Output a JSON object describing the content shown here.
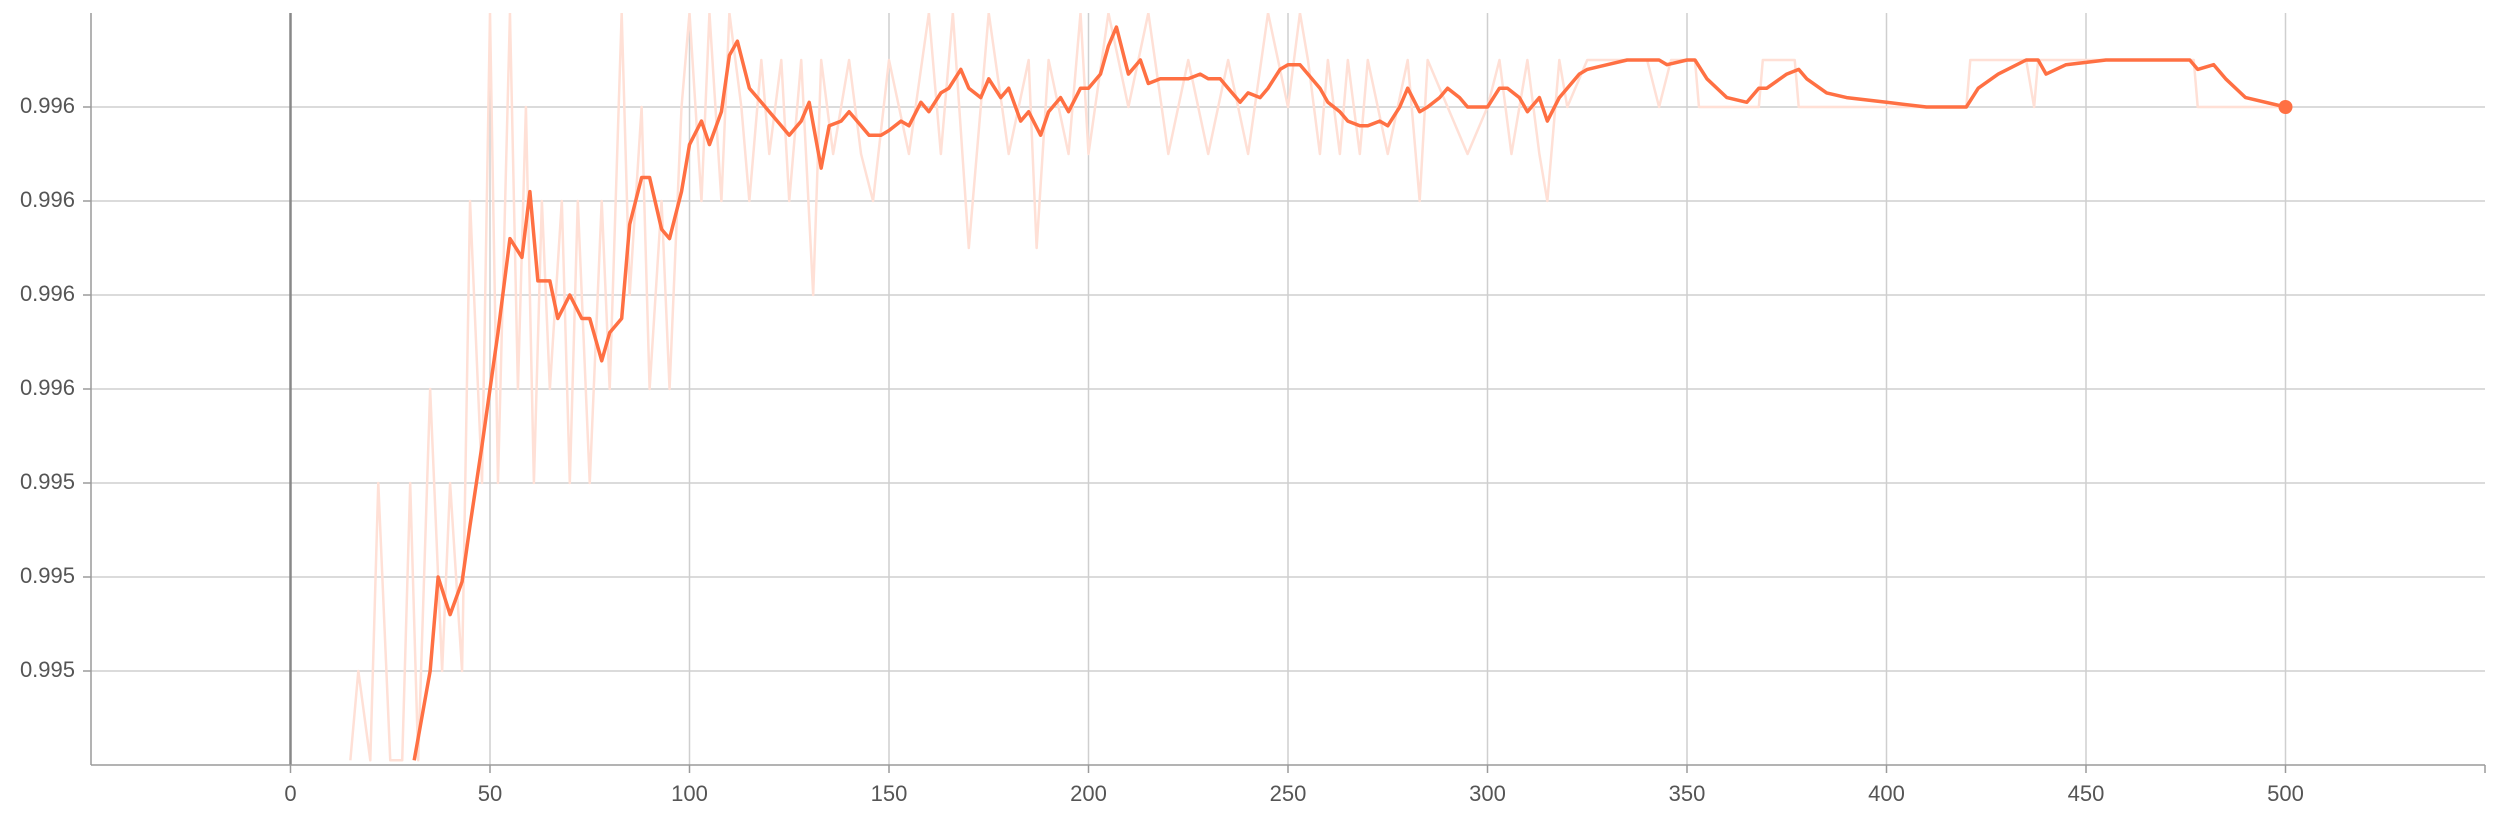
{
  "chart_data": {
    "type": "line",
    "xlim": [
      -50,
      550
    ],
    "xticks": [
      0,
      50,
      100,
      150,
      200,
      250,
      300,
      350,
      400,
      450,
      500
    ],
    "ylim": [
      0.9948,
      0.9964
    ],
    "yticks": [
      {
        "value": 0.995,
        "label": "0.995"
      },
      {
        "value": 0.9952,
        "label": "0.995"
      },
      {
        "value": 0.9954,
        "label": "0.995"
      },
      {
        "value": 0.9956,
        "label": "0.996"
      },
      {
        "value": 0.9958,
        "label": "0.996"
      },
      {
        "value": 0.996,
        "label": "0.996"
      },
      {
        "value": 0.9962,
        "label": "0.996"
      }
    ],
    "grid": true,
    "series": [
      {
        "color": "#ffe0d6",
        "x": [
          15,
          17,
          20,
          22,
          25,
          28,
          30,
          32,
          35,
          38,
          40,
          43,
          45,
          48,
          50,
          52,
          55,
          57,
          59,
          61,
          63,
          65,
          68,
          70,
          72,
          75,
          78,
          80,
          83,
          85,
          88,
          90,
          93,
          95,
          98,
          100,
          103,
          105,
          108,
          110,
          113,
          115,
          118,
          120,
          123,
          125,
          128,
          131,
          133,
          136,
          140,
          143,
          146,
          150,
          155,
          160,
          163,
          166,
          170,
          175,
          180,
          185,
          187,
          190,
          195,
          198,
          200,
          205,
          210,
          215,
          220,
          225,
          230,
          235,
          240,
          245,
          250,
          253,
          255,
          258,
          260,
          263,
          265,
          268,
          270,
          275,
          280,
          283,
          285,
          290,
          295,
          300,
          303,
          306,
          310,
          313,
          315,
          318,
          320,
          325,
          340,
          343,
          346,
          352,
          353,
          368,
          369,
          377,
          378,
          420,
          421,
          435,
          437,
          438,
          477,
          478,
          500
        ],
        "values": [
          0.99481,
          0.995,
          0.99481,
          0.9954,
          0.99481,
          0.99481,
          0.9954,
          0.99481,
          0.9956,
          0.995,
          0.9954,
          0.995,
          0.996,
          0.9954,
          0.9964,
          0.9954,
          0.9964,
          0.9956,
          0.9962,
          0.9954,
          0.996,
          0.9956,
          0.996,
          0.9954,
          0.996,
          0.9954,
          0.996,
          0.9956,
          0.9964,
          0.9958,
          0.9962,
          0.9956,
          0.996,
          0.9956,
          0.9962,
          0.9964,
          0.996,
          0.9964,
          0.996,
          0.9964,
          0.9962,
          0.996,
          0.9963,
          0.9961,
          0.9963,
          0.996,
          0.9963,
          0.9958,
          0.9963,
          0.9961,
          0.9963,
          0.9961,
          0.996,
          0.9963,
          0.9961,
          0.9964,
          0.9961,
          0.9964,
          0.9959,
          0.9964,
          0.9961,
          0.9963,
          0.9959,
          0.9963,
          0.9961,
          0.9964,
          0.9961,
          0.9964,
          0.9962,
          0.9964,
          0.9961,
          0.9963,
          0.9961,
          0.9963,
          0.9961,
          0.9964,
          0.9962,
          0.9964,
          0.9963,
          0.9961,
          0.9963,
          0.9961,
          0.9963,
          0.9961,
          0.9963,
          0.9961,
          0.9963,
          0.996,
          0.9963,
          0.9962,
          0.9961,
          0.9962,
          0.9963,
          0.9961,
          0.9963,
          0.9961,
          0.996,
          0.9963,
          0.9962,
          0.9963,
          0.9963,
          0.9962,
          0.9963,
          0.9963,
          0.9962,
          0.9962,
          0.9963,
          0.9963,
          0.9962,
          0.9962,
          0.9963,
          0.9963,
          0.9962,
          0.9963,
          0.9963,
          0.9962,
          0.9962
        ]
      },
      {
        "color": "#ff7043",
        "x": [
          31,
          35,
          37,
          40,
          43,
          45,
          48,
          50,
          52,
          55,
          58,
          60,
          62,
          65,
          67,
          70,
          73,
          75,
          78,
          80,
          83,
          85,
          88,
          90,
          93,
          95,
          98,
          100,
          103,
          105,
          108,
          110,
          112,
          115,
          118,
          120,
          123,
          125,
          128,
          130,
          133,
          135,
          138,
          140,
          143,
          145,
          148,
          150,
          153,
          155,
          158,
          160,
          163,
          165,
          168,
          170,
          173,
          175,
          178,
          180,
          183,
          185,
          188,
          190,
          193,
          195,
          198,
          200,
          203,
          205,
          207,
          210,
          213,
          215,
          218,
          220,
          223,
          225,
          228,
          230,
          233,
          235,
          238,
          240,
          243,
          245,
          248,
          250,
          253,
          255,
          258,
          260,
          263,
          265,
          268,
          270,
          273,
          275,
          278,
          280,
          283,
          285,
          288,
          290,
          293,
          295,
          298,
          300,
          303,
          305,
          308,
          310,
          313,
          315,
          318,
          320,
          323,
          325,
          330,
          335,
          340,
          343,
          345,
          350,
          352,
          355,
          360,
          365,
          368,
          370,
          375,
          378,
          380,
          385,
          390,
          400,
          410,
          420,
          423,
          428,
          435,
          438,
          440,
          445,
          455,
          465,
          476,
          478,
          482,
          485,
          490,
          500
        ],
        "values": [
          0.99481,
          0.995,
          0.9952,
          0.99512,
          0.99519,
          0.99531,
          0.99548,
          0.9956,
          0.99572,
          0.99592,
          0.99588,
          0.99602,
          0.99583,
          0.99583,
          0.99575,
          0.9958,
          0.99575,
          0.99575,
          0.99566,
          0.99572,
          0.99575,
          0.99595,
          0.99605,
          0.99605,
          0.99594,
          0.99592,
          0.99602,
          0.99612,
          0.99617,
          0.99612,
          0.99619,
          0.99631,
          0.99634,
          0.99624,
          0.99621,
          0.99619,
          0.99616,
          0.99614,
          0.99617,
          0.99621,
          0.99607,
          0.99616,
          0.99617,
          0.99619,
          0.99616,
          0.99614,
          0.99614,
          0.99615,
          0.99617,
          0.99616,
          0.99621,
          0.99619,
          0.99623,
          0.99624,
          0.99628,
          0.99624,
          0.99622,
          0.99626,
          0.99622,
          0.99624,
          0.99617,
          0.99619,
          0.99614,
          0.99619,
          0.99622,
          0.99619,
          0.99624,
          0.99624,
          0.99627,
          0.99633,
          0.99637,
          0.99627,
          0.9963,
          0.99625,
          0.99626,
          0.99626,
          0.99626,
          0.99626,
          0.99627,
          0.99626,
          0.99626,
          0.99624,
          0.99621,
          0.99623,
          0.99622,
          0.99624,
          0.99628,
          0.99629,
          0.99629,
          0.99627,
          0.99624,
          0.99621,
          0.99619,
          0.99617,
          0.99616,
          0.99616,
          0.99617,
          0.99616,
          0.9962,
          0.99624,
          0.99619,
          0.9962,
          0.99622,
          0.99624,
          0.99622,
          0.9962,
          0.9962,
          0.9962,
          0.99624,
          0.99624,
          0.99622,
          0.99619,
          0.99622,
          0.99617,
          0.99622,
          0.99624,
          0.99627,
          0.99628,
          0.99629,
          0.9963,
          0.9963,
          0.9963,
          0.99629,
          0.9963,
          0.9963,
          0.99626,
          0.99622,
          0.99621,
          0.99624,
          0.99624,
          0.99627,
          0.99628,
          0.99626,
          0.99623,
          0.99622,
          0.99621,
          0.9962,
          0.9962,
          0.99624,
          0.99627,
          0.9963,
          0.9963,
          0.99627,
          0.99629,
          0.9963,
          0.9963,
          0.9963,
          0.99628,
          0.99629,
          0.99626,
          0.99622,
          0.9962
        ]
      }
    ]
  }
}
